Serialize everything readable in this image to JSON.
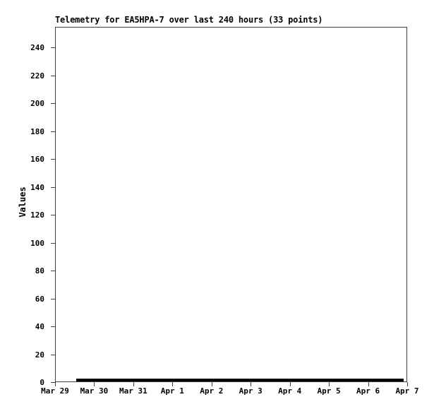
{
  "page": {
    "background_color": "#ffffff",
    "text_color": "#000000"
  },
  "chart_data": {
    "type": "line",
    "title": "Telemetry for EA5HPA-7 over last 240 hours (33 points)",
    "ylabel": "Values",
    "xlabel": "",
    "station": "EA5HPA-7",
    "window_hours": 240,
    "points_count": 33,
    "grid": false,
    "legend_position": "none",
    "frame_color": "#404040",
    "line_color": "#000000",
    "y_ticks": [
      0,
      20,
      40,
      60,
      80,
      100,
      120,
      140,
      160,
      180,
      200,
      220,
      240
    ],
    "ylim": [
      0,
      255
    ],
    "x_tick_labels": [
      "Mar 29",
      "Mar 30",
      "Mar 31",
      "Apr 1",
      "Apr 2",
      "Apr 3",
      "Apr 4",
      "Apr 5",
      "Apr 6",
      "Apr 7"
    ],
    "series": [
      {
        "name": "EA5HPA-7 telemetry values",
        "description": "flat line at ~0 spanning from ~13h after Mar 29 to ~22h into Apr 6",
        "values": [
          0,
          0,
          0,
          0,
          0,
          0,
          0,
          0,
          0,
          0,
          0,
          0,
          0,
          0,
          0,
          0,
          0,
          0,
          0,
          0,
          0,
          0,
          0,
          0,
          0,
          0,
          0,
          0,
          0,
          0,
          0,
          0,
          0
        ]
      }
    ],
    "line_geometry": {
      "start_frac": 0.06,
      "end_frac": 0.99,
      "value": 0,
      "thickness_px": 4
    }
  }
}
